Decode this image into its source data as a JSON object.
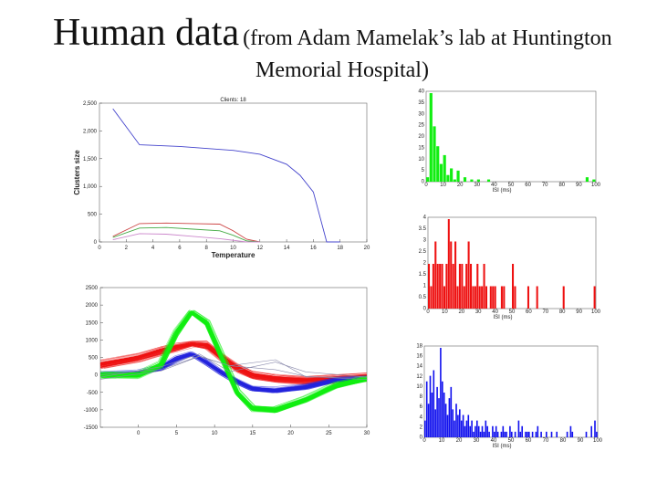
{
  "slide": {
    "title_main": "Human data",
    "title_rest": "(from Adam Mamelak’s lab at Huntington",
    "title_line2": "Memorial Hospital)"
  },
  "colors": {
    "blue": "#2222dd",
    "red": "#ee1111",
    "green": "#11ee11",
    "gray": "#8888aa"
  },
  "chart_data": [
    {
      "type": "line",
      "title": "Clients: 18",
      "xlabel": "Temperature",
      "ylabel": "Clusters size",
      "xlim": [
        0,
        20
      ],
      "ylim": [
        0,
        2500
      ],
      "xticks": [
        0,
        2,
        4,
        6,
        8,
        10,
        12,
        14,
        16,
        18,
        20
      ],
      "yticks": [
        0,
        500,
        1000,
        1500,
        2000,
        2500
      ],
      "series": [
        {
          "color": "#4444cc",
          "x": [
            1,
            3,
            6,
            10,
            12,
            14,
            15,
            16,
            17,
            18
          ],
          "y": [
            2400,
            1750,
            1720,
            1650,
            1580,
            1400,
            1200,
            900,
            0,
            0
          ]
        },
        {
          "color": "#cc4444",
          "x": [
            1,
            3,
            5,
            7,
            9,
            10,
            11,
            12
          ],
          "y": [
            100,
            330,
            340,
            330,
            320,
            200,
            50,
            0
          ]
        },
        {
          "color": "#44aa44",
          "x": [
            1,
            3,
            5,
            7,
            9,
            10,
            11,
            12
          ],
          "y": [
            80,
            250,
            260,
            230,
            200,
            120,
            20,
            0
          ]
        },
        {
          "color": "#cc88cc",
          "x": [
            1,
            3,
            5,
            7,
            9,
            10,
            11,
            12
          ],
          "y": [
            40,
            150,
            140,
            100,
            60,
            30,
            0,
            0
          ]
        }
      ]
    },
    {
      "type": "line",
      "title": "",
      "xlabel": "",
      "ylabel": "",
      "xlim": [
        -5,
        30
      ],
      "ylim": [
        -1500,
        2500
      ],
      "xticks": [
        0,
        5,
        10,
        15,
        20,
        25,
        30
      ],
      "yticks": [
        2500,
        2000,
        1500,
        1000,
        500,
        0,
        -500,
        -1000,
        -1500
      ],
      "series": [
        {
          "name": "red",
          "color": "#ee1111",
          "x": [
            -5,
            0,
            3,
            5,
            7,
            9,
            11,
            13,
            15,
            18,
            22,
            26,
            30
          ],
          "y": [
            300,
            500,
            700,
            800,
            900,
            850,
            500,
            200,
            0,
            -100,
            -150,
            -100,
            -50
          ]
        },
        {
          "name": "blue",
          "color": "#2222dd",
          "x": [
            -5,
            0,
            3,
            5,
            7,
            9,
            11,
            13,
            15,
            18,
            22,
            26,
            30
          ],
          "y": [
            0,
            50,
            200,
            450,
            600,
            350,
            50,
            -200,
            -400,
            -450,
            -350,
            -150,
            -100
          ]
        },
        {
          "name": "green",
          "color": "#11ee11",
          "x": [
            -5,
            0,
            3,
            5,
            7,
            9,
            11,
            13,
            15,
            18,
            22,
            26,
            30
          ],
          "y": [
            0,
            0,
            300,
            1200,
            1800,
            1500,
            500,
            -500,
            -950,
            -1000,
            -700,
            -300,
            -100
          ]
        }
      ]
    },
    {
      "type": "bar",
      "xlabel": "ISI (ms)",
      "color": "#11ee11",
      "xticks": [
        0,
        10,
        20,
        30,
        40,
        50,
        60,
        70,
        80,
        90,
        100
      ],
      "yticks": [
        0,
        5,
        10,
        15,
        20,
        25,
        30,
        35,
        40
      ],
      "values": [
        2,
        40,
        25,
        16,
        8,
        12,
        3,
        6,
        1,
        5,
        0,
        2,
        0,
        1,
        0,
        1,
        0,
        0,
        1,
        0,
        0,
        0,
        0,
        0,
        0,
        0,
        0,
        0,
        0,
        0,
        0,
        0,
        0,
        0,
        0,
        0,
        0,
        0,
        0,
        0,
        0,
        0,
        0,
        0,
        0,
        0,
        0,
        2,
        0,
        1
      ]
    },
    {
      "type": "bar",
      "xlabel": "ISI (ms)",
      "color": "#ee1111",
      "xticks": [
        0,
        10,
        20,
        30,
        40,
        50,
        60,
        70,
        80,
        90,
        100
      ],
      "yticks": [
        0,
        0.5,
        1,
        1.5,
        2,
        2.5,
        3,
        3.5,
        4
      ],
      "values": [
        2,
        1,
        2,
        3,
        2,
        2,
        2,
        1,
        2,
        4,
        3,
        2,
        3,
        1,
        2,
        2,
        1,
        2,
        3,
        2,
        1,
        1,
        2,
        1,
        1,
        2,
        1,
        0,
        1,
        1,
        1,
        0,
        0,
        1,
        1,
        0,
        0,
        0,
        2,
        1,
        0,
        0,
        0,
        0,
        0,
        1,
        0,
        0,
        0,
        1,
        0,
        0,
        0,
        0,
        0,
        0,
        0,
        0,
        0,
        0,
        0,
        1,
        0,
        0,
        0,
        0,
        0,
        0,
        0,
        0,
        0,
        0,
        0,
        0,
        0,
        1
      ]
    },
    {
      "type": "bar",
      "xlabel": "ISI (ms)",
      "color": "#1111ee",
      "xticks": [
        0,
        10,
        20,
        30,
        40,
        50,
        60,
        70,
        80,
        90,
        100
      ],
      "yticks": [
        0,
        2,
        4,
        6,
        8,
        10,
        12,
        14,
        16,
        18
      ],
      "values": [
        3,
        10,
        6,
        11,
        8,
        12,
        5,
        9,
        7,
        16,
        10,
        8,
        6,
        4,
        7,
        9,
        5,
        3,
        6,
        4,
        5,
        3,
        4,
        2,
        3,
        4,
        2,
        3,
        1,
        2,
        3,
        2,
        1,
        2,
        1,
        3,
        2,
        1,
        0,
        2,
        1,
        2,
        1,
        0,
        1,
        2,
        1,
        1,
        0,
        2,
        1,
        0,
        1,
        0,
        3,
        1,
        2,
        0,
        1,
        1,
        1,
        0,
        1,
        0,
        1,
        2,
        0,
        1,
        0,
        0,
        1,
        0,
        0,
        1,
        0,
        0,
        1,
        0,
        0,
        0,
        0,
        0,
        1,
        0,
        2,
        1,
        0,
        0,
        0,
        0,
        0,
        0,
        0,
        1,
        0,
        0,
        2,
        0,
        3,
        1
      ]
    }
  ]
}
